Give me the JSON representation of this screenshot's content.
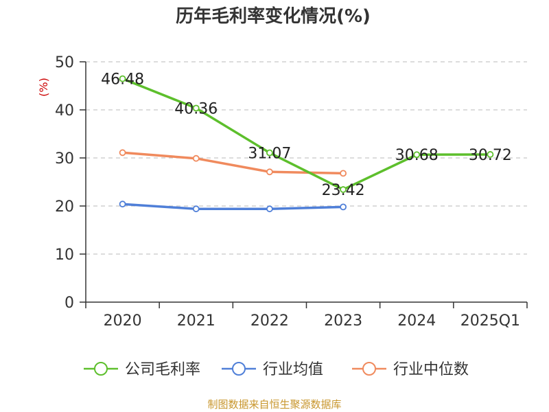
{
  "chart_data": {
    "type": "line",
    "title": "历年毛利率变化情况(%)",
    "ylabel": "(%)",
    "categories": [
      "2020",
      "2021",
      "2022",
      "2023",
      "2024",
      "2025Q1"
    ],
    "ylim": [
      0,
      50
    ],
    "yticks": [
      0,
      10,
      20,
      30,
      40,
      50
    ],
    "grid": true,
    "legend_position": "bottom",
    "series": [
      {
        "name": "公司毛利率",
        "color": "#5dbf2c",
        "values": [
          46.48,
          40.36,
          31.07,
          23.42,
          30.68,
          30.72
        ],
        "labels": [
          "46.48",
          "40.36",
          "31.07",
          "23.42",
          "30.68",
          "30.72"
        ]
      },
      {
        "name": "行业均值",
        "color": "#4f7fd8",
        "values": [
          20.4,
          19.4,
          19.4,
          19.8,
          null,
          null
        ]
      },
      {
        "name": "行业中位数",
        "color": "#f08a5d",
        "values": [
          31.1,
          29.9,
          27.1,
          26.8,
          null,
          null
        ]
      }
    ]
  },
  "footer": {
    "source": "制图数据来自恒生聚源数据库"
  }
}
